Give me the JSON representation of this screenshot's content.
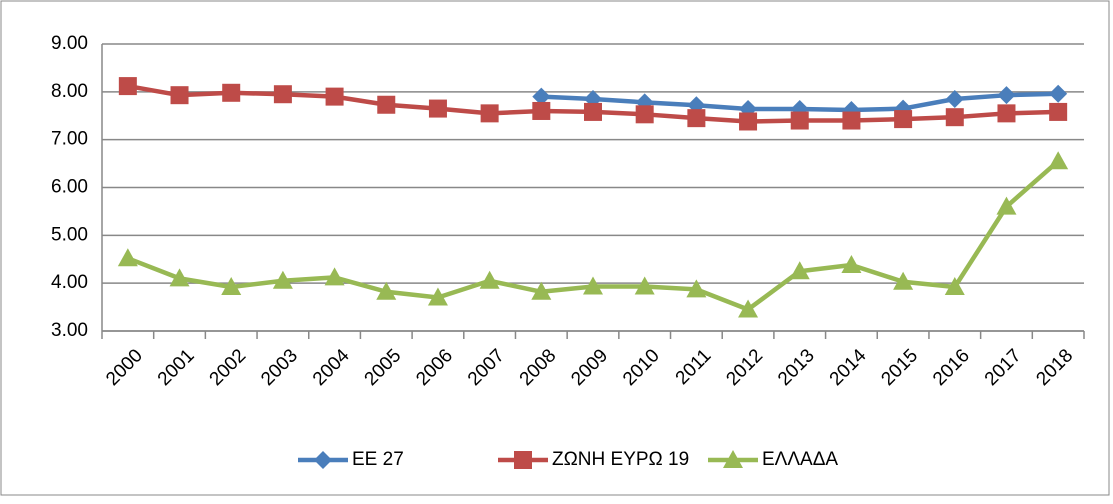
{
  "chart_data": {
    "type": "line",
    "categories": [
      "2000",
      "2001",
      "2002",
      "2003",
      "2004",
      "2005",
      "2006",
      "2007",
      "2008",
      "2009",
      "2010",
      "2011",
      "2012",
      "2013",
      "2014",
      "2015",
      "2016",
      "2017",
      "2018"
    ],
    "series": [
      {
        "name": "ΕΕ 27",
        "color": "#4a7ebb",
        "marker": "diamond",
        "values": [
          null,
          null,
          null,
          null,
          null,
          null,
          null,
          null,
          7.9,
          7.85,
          7.78,
          7.72,
          7.64,
          7.64,
          7.62,
          7.65,
          7.85,
          7.93,
          7.96
        ]
      },
      {
        "name": "ΖΩΝΗ ΕΥΡΩ 19",
        "color": "#be4b48",
        "marker": "square",
        "values": [
          8.12,
          7.93,
          7.98,
          7.95,
          7.9,
          7.73,
          7.65,
          7.55,
          7.6,
          7.58,
          7.53,
          7.45,
          7.38,
          7.4,
          7.4,
          7.43,
          7.47,
          7.55,
          7.58
        ]
      },
      {
        "name": "ΕΛΛΑΔΑ",
        "color": "#98b954",
        "marker": "triangle",
        "values": [
          4.52,
          4.1,
          3.92,
          4.05,
          4.12,
          3.82,
          3.7,
          4.05,
          3.82,
          3.93,
          3.93,
          3.87,
          3.45,
          4.25,
          4.38,
          4.03,
          3.92,
          5.6,
          6.55
        ]
      }
    ],
    "ylim": [
      3,
      9
    ],
    "yticks": [
      {
        "value": 3,
        "label": "3.00"
      },
      {
        "value": 4,
        "label": "4.00"
      },
      {
        "value": 5,
        "label": "5.00"
      },
      {
        "value": 6,
        "label": "6.00"
      },
      {
        "value": 7,
        "label": "7.00"
      },
      {
        "value": 8,
        "label": "8.00"
      },
      {
        "value": 9,
        "label": "9.00"
      }
    ],
    "grid": true,
    "legend": "bottom"
  }
}
